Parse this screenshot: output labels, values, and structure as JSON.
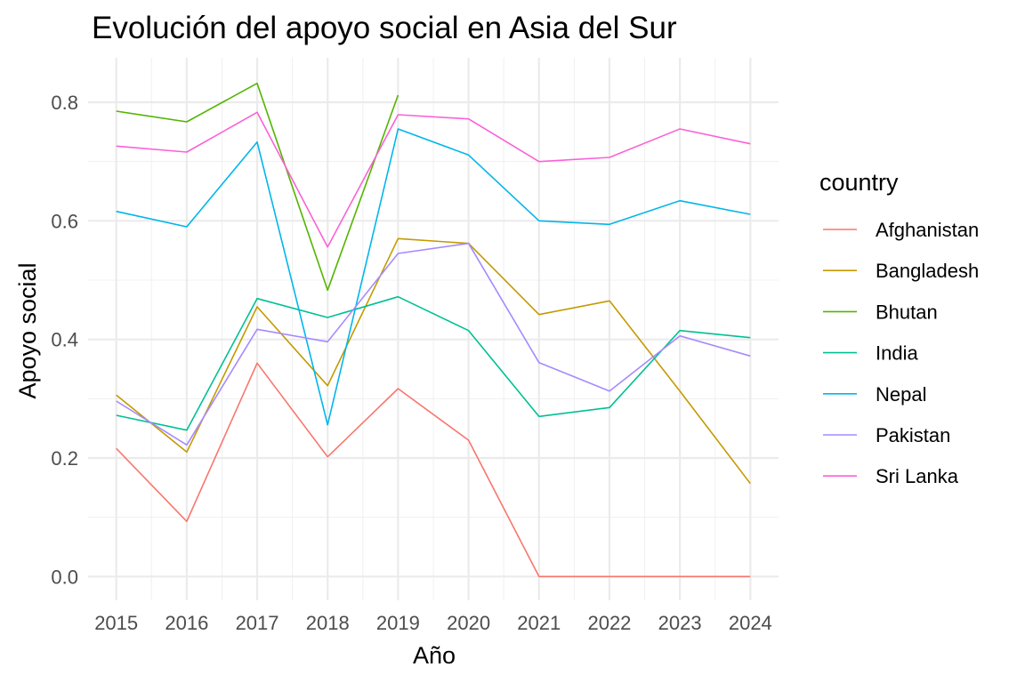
{
  "chart_data": {
    "type": "line",
    "title": "Evolución del apoyo social en Asia del Sur",
    "xlabel": "Año",
    "ylabel": "Apoyo social",
    "legend_title": "country",
    "legend_position": "right",
    "grid": true,
    "xlim": [
      2014.6,
      2024.4
    ],
    "ylim": [
      -0.04,
      0.875
    ],
    "x": [
      2015,
      2016,
      2017,
      2018,
      2019,
      2020,
      2021,
      2022,
      2023,
      2024
    ],
    "x_ticks": [
      "2015",
      "2016",
      "2017",
      "2018",
      "2019",
      "2020",
      "2021",
      "2022",
      "2023",
      "2024"
    ],
    "y_ticks": [
      0.0,
      0.2,
      0.4,
      0.6,
      0.8
    ],
    "y_tick_labels": [
      "0.0",
      "0.2",
      "0.4",
      "0.6",
      "0.8"
    ],
    "series": [
      {
        "name": "Afghanistan",
        "color": "#F8766D",
        "values": [
          0.216,
          0.093,
          0.36,
          0.202,
          0.317,
          0.23,
          0.0,
          0.0,
          0.0,
          0.0
        ]
      },
      {
        "name": "Bangladesh",
        "color": "#C49A00",
        "values": [
          0.306,
          0.21,
          0.455,
          0.322,
          0.57,
          0.562,
          0.442,
          0.465,
          0.313,
          0.157
        ]
      },
      {
        "name": "Bhutan",
        "color": "#53B400",
        "values": [
          0.785,
          0.767,
          0.832,
          0.483,
          0.812,
          null,
          null,
          null,
          null,
          null
        ]
      },
      {
        "name": "India",
        "color": "#00C094",
        "values": [
          0.272,
          0.247,
          0.469,
          0.437,
          0.472,
          0.415,
          0.27,
          0.285,
          0.415,
          0.403
        ]
      },
      {
        "name": "Nepal",
        "color": "#00B6EB",
        "values": [
          0.616,
          0.59,
          0.733,
          0.256,
          0.755,
          0.711,
          0.6,
          0.594,
          0.634,
          0.611
        ]
      },
      {
        "name": "Pakistan",
        "color": "#A58AFF",
        "values": [
          0.296,
          0.222,
          0.417,
          0.396,
          0.545,
          0.562,
          0.361,
          0.313,
          0.406,
          0.372
        ]
      },
      {
        "name": "Sri Lanka",
        "color": "#FB61D7",
        "values": [
          0.726,
          0.716,
          0.783,
          0.556,
          0.779,
          0.772,
          0.7,
          0.707,
          0.755,
          0.73
        ]
      }
    ]
  }
}
